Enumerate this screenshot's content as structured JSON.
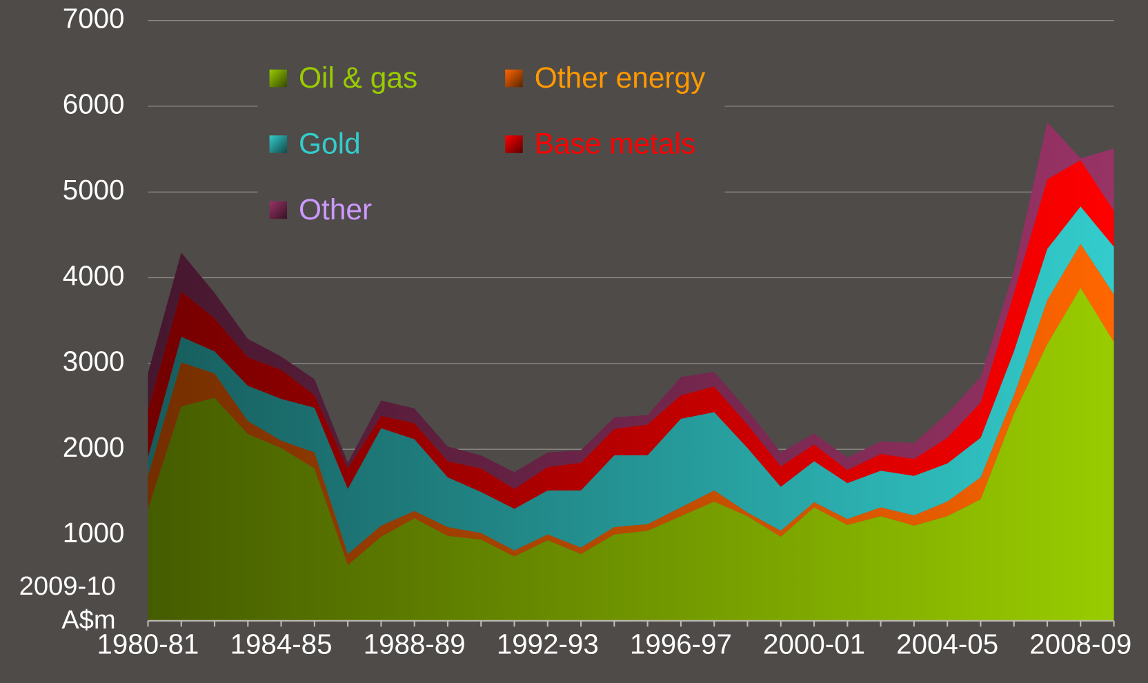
{
  "chart_data": {
    "type": "stacked_area",
    "y_label": [
      "2009-10",
      "A$m"
    ],
    "categories": [
      "1980-81",
      null,
      null,
      null,
      "1984-85",
      null,
      null,
      null,
      "1988-89",
      null,
      null,
      null,
      "1992-93",
      null,
      null,
      null,
      "1996-97",
      null,
      null,
      null,
      "2000-01",
      null,
      null,
      null,
      "2004-05",
      null,
      null,
      null,
      "2008-09",
      null
    ],
    "series": [
      {
        "name": "Oil & gas",
        "color": "#99cc00",
        "legend_text_color": "#99cc00",
        "values": [
          1306,
          2500,
          2600,
          2177,
          2015,
          1775,
          650,
          980,
          1195,
          990,
          948,
          750,
          940,
          780,
          1007,
          1050,
          1220,
          1390,
          1220,
          980,
          1323,
          1118,
          1220,
          1110,
          1220,
          1417,
          2416,
          3227,
          3884,
          3252
        ]
      },
      {
        "name": "Other energy",
        "color": "#ff6600",
        "legend_text_color": "#ff9900",
        "values": [
          384,
          513,
          285,
          153,
          85,
          188,
          127,
          130,
          85,
          103,
          76,
          70,
          67,
          74,
          86,
          77,
          103,
          130,
          43,
          70,
          60,
          69,
          103,
          119,
          171,
          256,
          214,
          512,
          512,
          555
        ]
      },
      {
        "name": "Gold",
        "color": "#33cccc",
        "legend_text_color": "#33cccc",
        "values": [
          214,
          299,
          257,
          410,
          487,
          521,
          760,
          1135,
          837,
          580,
          478,
          486,
          513,
          666,
          836,
          802,
          1033,
          913,
          752,
          512,
          478,
          418,
          427,
          461,
          444,
          461,
          512,
          598,
          436,
          555
        ]
      },
      {
        "name": "Base metals",
        "color": "#ff0000",
        "legend_text_color": "#ff0000",
        "values": [
          555,
          530,
          384,
          333,
          341,
          146,
          239,
          145,
          188,
          188,
          274,
          231,
          273,
          324,
          308,
          359,
          274,
          299,
          273,
          239,
          196,
          154,
          196,
          197,
          299,
          410,
          682,
          811,
          540,
          418
        ]
      },
      {
        "name": "Other",
        "color": "#993366",
        "legend_text_color": "#cc99ff",
        "values": [
          426,
          452,
          298,
          214,
          154,
          187,
          68,
          180,
          171,
          171,
          153,
          196,
          170,
          145,
          136,
          111,
          213,
          170,
          171,
          162,
          128,
          145,
          145,
          187,
          282,
          299,
          257,
          665,
          20,
          726
        ]
      }
    ],
    "ylim": [
      0,
      7000
    ],
    "yticks": [
      1000,
      2000,
      3000,
      4000,
      5000,
      6000,
      7000
    ],
    "grid": true
  }
}
